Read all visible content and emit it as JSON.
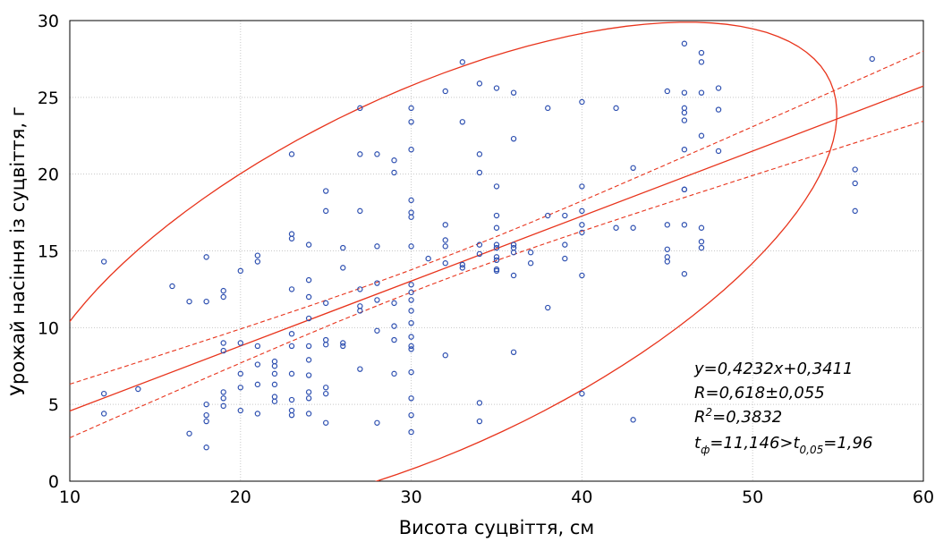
{
  "chart_data": {
    "type": "scatter",
    "xlabel": "Висота суцвіття, см",
    "ylabel": "Урожай насіння із суцвіття, г",
    "xlim": [
      10,
      60
    ],
    "ylim": [
      0,
      30
    ],
    "x_ticks": [
      "10",
      "20",
      "30",
      "40",
      "50",
      "60"
    ],
    "y_ticks": [
      "0",
      "5",
      "10",
      "15",
      "20",
      "25",
      "30"
    ],
    "grid": true,
    "colors": {
      "points": "#2d4fb0",
      "fit": "#e8341c"
    },
    "points": [
      [
        12,
        14.3
      ],
      [
        12,
        5.7
      ],
      [
        12,
        4.4
      ],
      [
        14,
        6.0
      ],
      [
        16,
        12.7
      ],
      [
        17,
        11.7
      ],
      [
        17,
        3.1
      ],
      [
        18,
        14.6
      ],
      [
        18,
        11.7
      ],
      [
        18,
        5.0
      ],
      [
        18,
        4.3
      ],
      [
        18,
        3.9
      ],
      [
        18,
        2.2
      ],
      [
        19,
        12.4
      ],
      [
        19,
        12.0
      ],
      [
        19,
        9.0
      ],
      [
        19,
        8.5
      ],
      [
        19,
        5.8
      ],
      [
        19,
        5.4
      ],
      [
        19,
        4.9
      ],
      [
        20,
        13.7
      ],
      [
        20,
        9.0
      ],
      [
        20,
        7.0
      ],
      [
        20,
        6.1
      ],
      [
        20,
        4.6
      ],
      [
        21,
        14.7
      ],
      [
        21,
        14.3
      ],
      [
        21,
        8.8
      ],
      [
        21,
        7.6
      ],
      [
        21,
        6.3
      ],
      [
        21,
        4.4
      ],
      [
        22,
        7.8
      ],
      [
        22,
        7.5
      ],
      [
        22,
        7.0
      ],
      [
        22,
        6.3
      ],
      [
        22,
        5.5
      ],
      [
        22,
        5.2
      ],
      [
        23,
        21.3
      ],
      [
        23,
        16.1
      ],
      [
        23,
        15.8
      ],
      [
        23,
        12.5
      ],
      [
        23,
        9.6
      ],
      [
        23,
        8.8
      ],
      [
        23,
        7.0
      ],
      [
        23,
        5.3
      ],
      [
        23,
        4.6
      ],
      [
        23,
        4.3
      ],
      [
        24,
        15.4
      ],
      [
        24,
        13.1
      ],
      [
        24,
        12.0
      ],
      [
        24,
        10.6
      ],
      [
        24,
        8.8
      ],
      [
        24,
        7.9
      ],
      [
        24,
        6.9
      ],
      [
        24,
        5.8
      ],
      [
        24,
        5.4
      ],
      [
        24,
        4.4
      ],
      [
        25,
        18.9
      ],
      [
        25,
        17.6
      ],
      [
        25,
        11.6
      ],
      [
        25,
        9.2
      ],
      [
        25,
        8.9
      ],
      [
        25,
        6.1
      ],
      [
        25,
        5.7
      ],
      [
        25,
        3.8
      ],
      [
        26,
        15.2
      ],
      [
        26,
        13.9
      ],
      [
        26,
        9.0
      ],
      [
        26,
        8.8
      ],
      [
        27,
        24.3
      ],
      [
        27,
        21.3
      ],
      [
        27,
        17.6
      ],
      [
        27,
        12.5
      ],
      [
        27,
        11.4
      ],
      [
        27,
        11.1
      ],
      [
        27,
        7.3
      ],
      [
        28,
        21.3
      ],
      [
        28,
        15.3
      ],
      [
        28,
        12.9
      ],
      [
        28,
        11.8
      ],
      [
        28,
        9.8
      ],
      [
        28,
        3.8
      ],
      [
        29,
        20.9
      ],
      [
        29,
        20.1
      ],
      [
        29,
        11.6
      ],
      [
        29,
        10.1
      ],
      [
        29,
        9.2
      ],
      [
        29,
        7.0
      ],
      [
        30,
        24.3
      ],
      [
        30,
        23.4
      ],
      [
        30,
        21.6
      ],
      [
        30,
        18.3
      ],
      [
        30,
        17.5
      ],
      [
        30,
        17.2
      ],
      [
        30,
        15.3
      ],
      [
        30,
        12.8
      ],
      [
        30,
        12.3
      ],
      [
        30,
        11.8
      ],
      [
        30,
        11.1
      ],
      [
        30,
        10.3
      ],
      [
        30,
        9.4
      ],
      [
        30,
        8.8
      ],
      [
        30,
        8.6
      ],
      [
        30,
        7.1
      ],
      [
        30,
        5.4
      ],
      [
        30,
        4.3
      ],
      [
        30,
        3.2
      ],
      [
        31,
        14.5
      ],
      [
        32,
        25.4
      ],
      [
        32,
        16.7
      ],
      [
        32,
        15.7
      ],
      [
        32,
        15.3
      ],
      [
        32,
        14.2
      ],
      [
        32,
        8.2
      ],
      [
        33,
        27.3
      ],
      [
        33,
        23.4
      ],
      [
        33,
        14.1
      ],
      [
        33,
        13.9
      ],
      [
        34,
        25.9
      ],
      [
        34,
        21.3
      ],
      [
        34,
        20.1
      ],
      [
        34,
        15.4
      ],
      [
        34,
        14.8
      ],
      [
        34,
        5.1
      ],
      [
        34,
        3.9
      ],
      [
        35,
        25.6
      ],
      [
        35,
        19.2
      ],
      [
        35,
        17.3
      ],
      [
        35,
        16.5
      ],
      [
        35,
        15.4
      ],
      [
        35,
        15.2
      ],
      [
        35,
        14.6
      ],
      [
        35,
        14.4
      ],
      [
        35,
        13.8
      ],
      [
        35,
        13.7
      ],
      [
        36,
        25.3
      ],
      [
        36,
        22.3
      ],
      [
        36,
        15.4
      ],
      [
        36,
        15.2
      ],
      [
        36,
        14.9
      ],
      [
        36,
        13.4
      ],
      [
        36,
        8.4
      ],
      [
        37,
        14.9
      ],
      [
        37,
        14.2
      ],
      [
        38,
        24.3
      ],
      [
        38,
        17.3
      ],
      [
        38,
        11.3
      ],
      [
        39,
        17.3
      ],
      [
        39,
        15.4
      ],
      [
        39,
        14.5
      ],
      [
        40,
        24.7
      ],
      [
        40,
        19.2
      ],
      [
        40,
        17.6
      ],
      [
        40,
        16.7
      ],
      [
        40,
        16.2
      ],
      [
        40,
        13.4
      ],
      [
        40,
        5.7
      ],
      [
        42,
        24.3
      ],
      [
        42,
        16.5
      ],
      [
        43,
        20.4
      ],
      [
        43,
        16.5
      ],
      [
        43,
        4.0
      ],
      [
        45,
        25.4
      ],
      [
        45,
        16.7
      ],
      [
        45,
        15.1
      ],
      [
        45,
        14.6
      ],
      [
        45,
        14.3
      ],
      [
        46,
        28.5
      ],
      [
        46,
        25.3
      ],
      [
        46,
        24.3
      ],
      [
        46,
        24.0
      ],
      [
        46,
        23.5
      ],
      [
        46,
        21.6
      ],
      [
        46,
        19.0
      ],
      [
        46,
        19.0
      ],
      [
        46,
        16.7
      ],
      [
        46,
        13.5
      ],
      [
        47,
        27.9
      ],
      [
        47,
        27.3
      ],
      [
        47,
        25.3
      ],
      [
        47,
        22.5
      ],
      [
        47,
        16.5
      ],
      [
        47,
        15.6
      ],
      [
        47,
        15.2
      ],
      [
        48,
        25.6
      ],
      [
        48,
        24.2
      ],
      [
        48,
        21.5
      ],
      [
        56,
        20.3
      ],
      [
        56,
        19.4
      ],
      [
        56,
        17.6
      ],
      [
        57,
        27.5
      ]
    ],
    "regression": {
      "slope": 0.4232,
      "intercept": 0.3411
    },
    "annotations": {
      "line1": "y=0,4232x+0,3411",
      "line2": "R=0,618±0,055",
      "line3_main": "R",
      "line3_sup": "2",
      "line3_rest": "=0,3832",
      "line4_t": "t",
      "line4_phi": "ф",
      "line4_mid": "=11,146>t",
      "line4_sub": "0,05",
      "line4_end": "=1,96"
    }
  }
}
